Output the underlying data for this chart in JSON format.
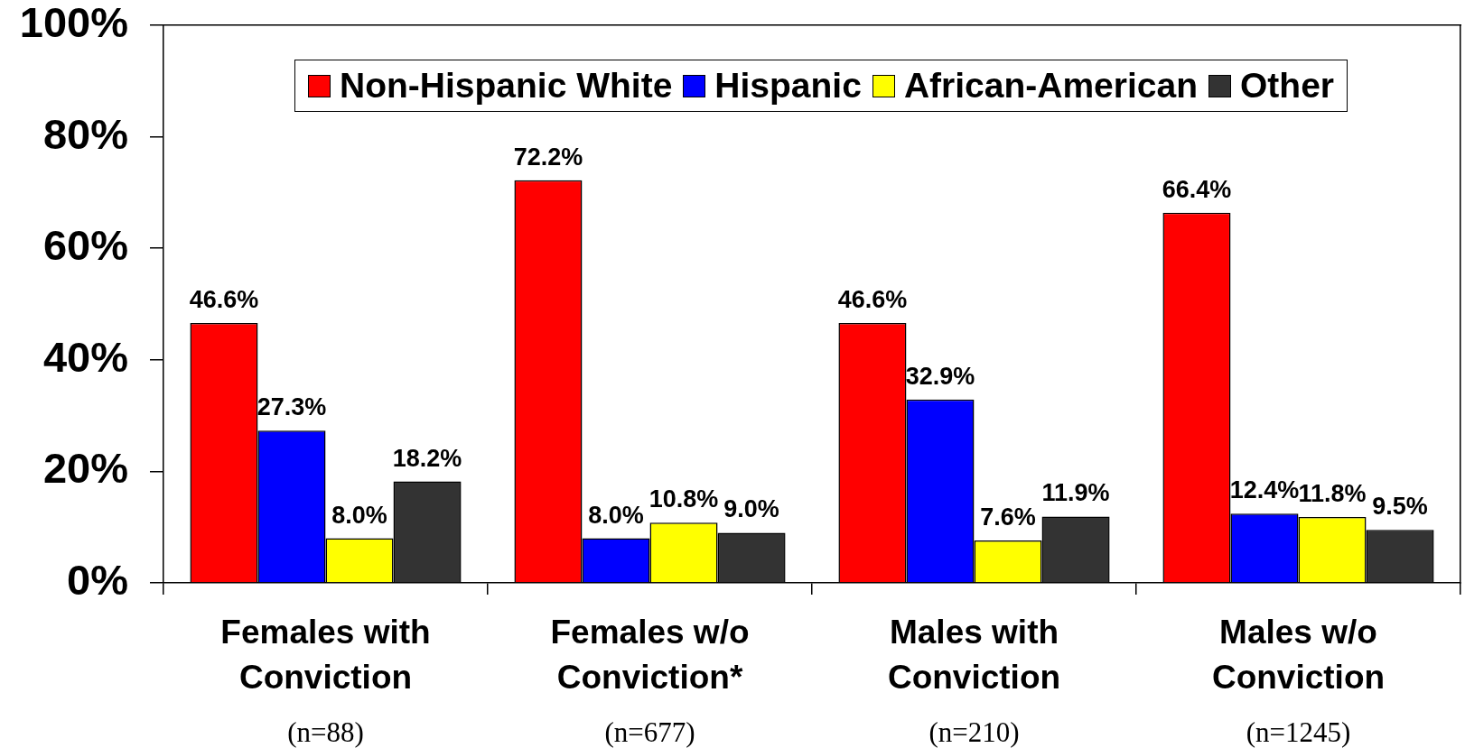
{
  "chart_data": {
    "type": "bar",
    "categories": [
      "Females with Conviction",
      "Females w/o Conviction*",
      "Males with Conviction",
      "Males w/o Conviction"
    ],
    "series": [
      {
        "name": "Non-Hispanic White",
        "color": "#ff0000",
        "values": [
          46.6,
          72.2,
          46.6,
          66.4
        ],
        "value_labels": [
          "46.6%",
          "72.2%",
          "46.6%",
          "66.4%"
        ]
      },
      {
        "name": "Hispanic",
        "color": "#0000ff",
        "values": [
          27.3,
          8.0,
          32.9,
          12.4
        ],
        "value_labels": [
          "27.3%",
          "8.0%",
          "32.9%",
          "12.4%"
        ]
      },
      {
        "name": "African-American",
        "color": "#ffff00",
        "values": [
          8.0,
          10.8,
          7.6,
          11.8
        ],
        "value_labels": [
          "8.0%",
          "10.8%",
          "7.6%",
          "11.8%"
        ]
      },
      {
        "name": "Other",
        "color": "#333333",
        "values": [
          18.2,
          9.0,
          11.9,
          9.5
        ],
        "value_labels": [
          "18.2%",
          "9.0%",
          "11.9%",
          "9.5%"
        ]
      }
    ],
    "ylim": [
      0,
      100
    ],
    "yticks": [
      {
        "value": 0,
        "label": "0%"
      },
      {
        "value": 20,
        "label": "20%"
      },
      {
        "value": 40,
        "label": "40%"
      },
      {
        "value": 60,
        "label": "60%"
      },
      {
        "value": 80,
        "label": "80%"
      },
      {
        "value": 100,
        "label": "100%"
      }
    ],
    "annotations": [
      "(n=88)",
      "(n=677)",
      "(n=210)",
      "(n=1245)"
    ],
    "legend": "top",
    "grid": false
  }
}
